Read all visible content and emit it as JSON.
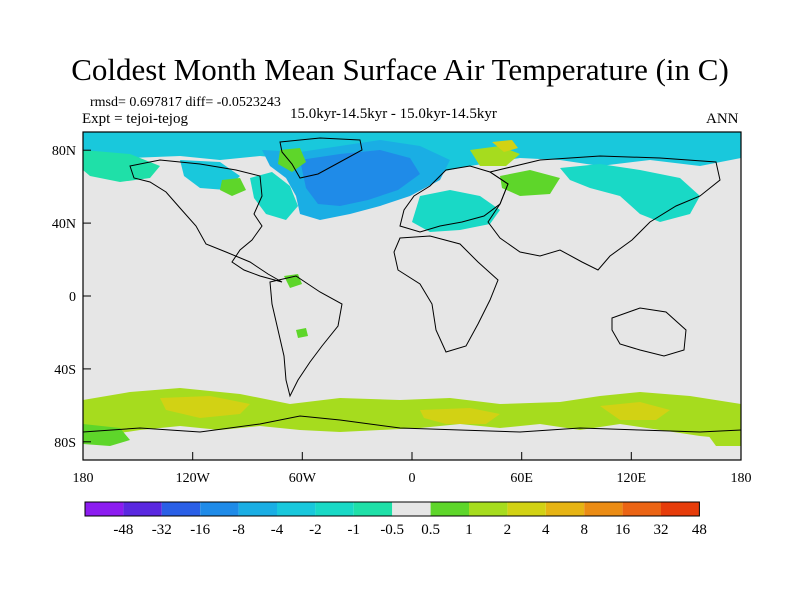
{
  "title": "Coldest Month Mean Surface Air Temperature (in C)",
  "stats_line": "rmsd= 0.697817  diff= -0.0523243",
  "expt_line": "Expt = tejoi-tejog",
  "period_line": "15.0kyr-14.5kyr - 15.0kyr-14.5kyr",
  "season_label": "ANN",
  "axes": {
    "x_ticks": [
      "180",
      "120W",
      "60W",
      "0",
      "60E",
      "120E",
      "180"
    ],
    "y_ticks": [
      "80N",
      "40N",
      "0",
      "40S",
      "80S"
    ]
  },
  "colorbar": {
    "labels": [
      "-48",
      "-32",
      "-16",
      "-8",
      "-4",
      "-2",
      "-1",
      "-0.5",
      "0.5",
      "1",
      "2",
      "4",
      "8",
      "16",
      "32",
      "48"
    ],
    "colors": [
      "#8c1cf0",
      "#5a28e0",
      "#2a5fe6",
      "#1f8be8",
      "#1aaee4",
      "#19c8dc",
      "#19d9c6",
      "#1fe0a8",
      "#e6e6e6",
      "#5ed62a",
      "#a6dc1e",
      "#d2d214",
      "#e6b414",
      "#eb8c14",
      "#eb6414",
      "#e63c0a"
    ]
  },
  "map": {
    "background_color": "#e6e6e6",
    "coastline_color": "#000000",
    "anomaly_regions": [
      {
        "region": "north-atlantic-cold",
        "level": "-4"
      },
      {
        "region": "arctic-cold",
        "level": "-2"
      },
      {
        "region": "siberia-cold",
        "level": "-1"
      },
      {
        "region": "southern-ocean-warm",
        "level": "2"
      },
      {
        "region": "southern-ocean-warm-core",
        "level": "4"
      }
    ]
  }
}
